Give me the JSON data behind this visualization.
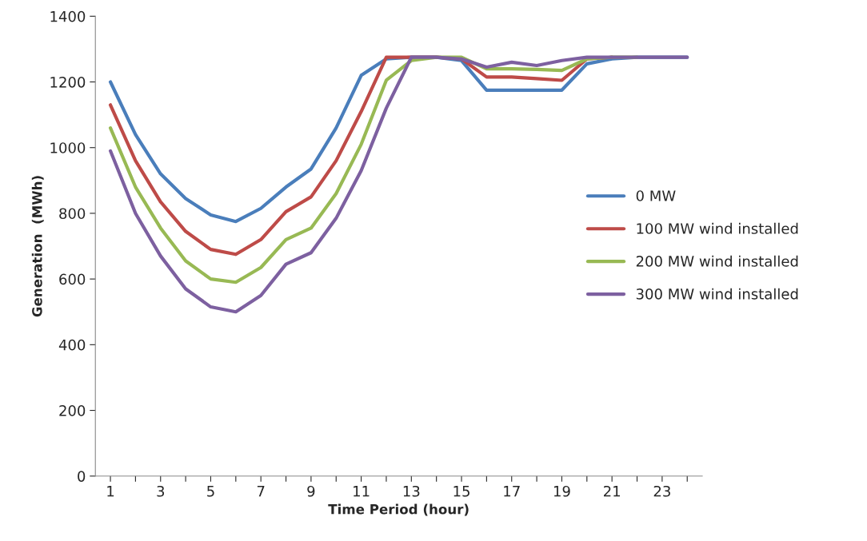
{
  "chart_data": {
    "type": "line",
    "xlabel": "Time Period (hour)",
    "ylabel": "Generation  (MWh)",
    "categories": [
      "1",
      null,
      "3",
      null,
      "5",
      null,
      "7",
      null,
      "9",
      null,
      "11",
      null,
      "13",
      null,
      "15",
      null,
      "17",
      null,
      "19",
      null,
      "21",
      null,
      "23",
      null
    ],
    "series": [
      {
        "name": "0 MW",
        "color": "#4a7ebb",
        "values": [
          1200,
          1040,
          920,
          845,
          795,
          775,
          815,
          880,
          935,
          1060,
          1220,
          1270,
          1275,
          1275,
          1265,
          1175,
          1175,
          1175,
          1175,
          1255,
          1270,
          1275,
          1275,
          1275
        ]
      },
      {
        "name": "100 MW wind installed",
        "color": "#be4b48",
        "values": [
          1130,
          960,
          835,
          745,
          690,
          675,
          720,
          805,
          850,
          960,
          1110,
          1275,
          1275,
          1275,
          1270,
          1215,
          1215,
          1210,
          1205,
          1270,
          1275,
          null,
          null,
          null
        ]
      },
      {
        "name": "200 MW wind installed",
        "color": "#98b954",
        "values": [
          1060,
          880,
          755,
          655,
          600,
          590,
          635,
          720,
          755,
          860,
          1010,
          1205,
          1265,
          1275,
          1275,
          1240,
          1240,
          1238,
          1235,
          1270,
          1275,
          1275,
          null,
          null
        ]
      },
      {
        "name": "300 MW wind installed",
        "color": "#7d60a0",
        "values": [
          990,
          800,
          670,
          570,
          515,
          500,
          550,
          645,
          680,
          785,
          930,
          1120,
          1275,
          1275,
          1270,
          1245,
          1260,
          1250,
          1265,
          1275,
          1275,
          1275,
          1275,
          1275
        ]
      }
    ],
    "ylim": [
      0,
      1400
    ],
    "yticks": [
      0,
      200,
      400,
      600,
      800,
      1000,
      1200,
      1400
    ],
    "grid": false,
    "legend": "right",
    "marker": "none",
    "line_style": "solid"
  }
}
